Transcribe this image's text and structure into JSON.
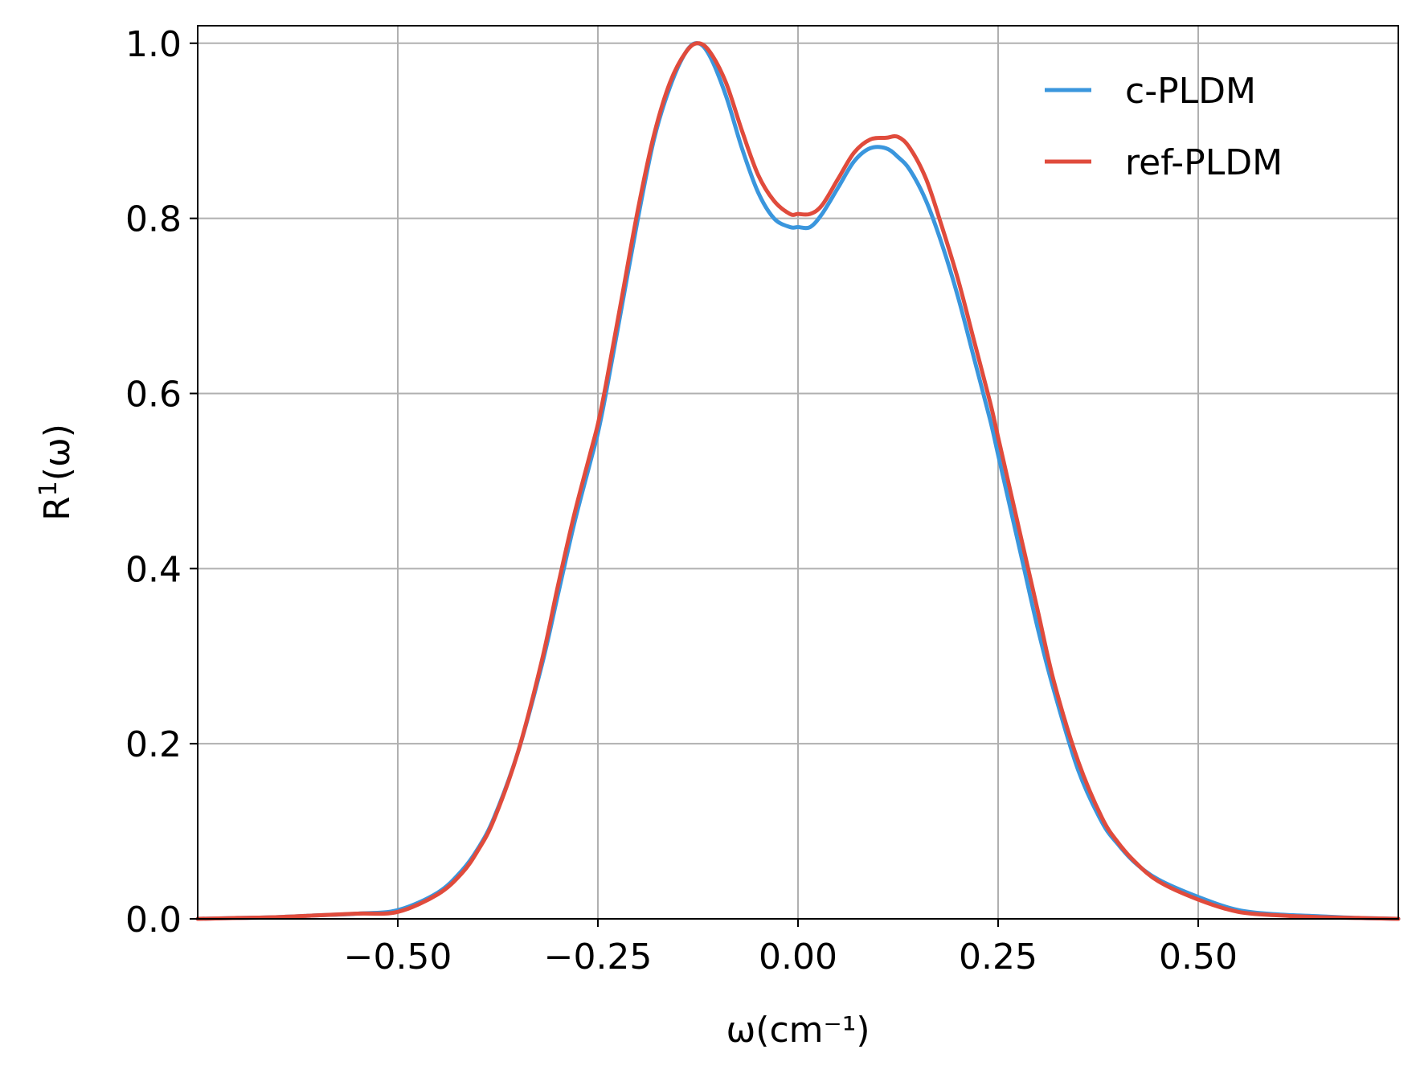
{
  "chart_data": {
    "type": "line",
    "title": "",
    "xlabel": "ω(cm⁻¹)",
    "ylabel": "R",
    "ylabel_superscript": "1",
    "ylabel_suffix": "(ω)",
    "xlim": [
      -0.75,
      0.75
    ],
    "ylim": [
      0.0,
      1.02
    ],
    "xticks": [
      -0.5,
      -0.25,
      0.0,
      0.25,
      0.5
    ],
    "xtick_labels": [
      "−0.50",
      "−0.25",
      "0.00",
      "0.25",
      "0.50"
    ],
    "yticks": [
      0.0,
      0.2,
      0.4,
      0.6,
      0.8,
      1.0
    ],
    "ytick_labels": [
      "0.0",
      "0.2",
      "0.4",
      "0.6",
      "0.8",
      "1.0"
    ],
    "grid": true,
    "legend_position": "upper right",
    "x": [
      -0.75,
      -0.7,
      -0.65,
      -0.6,
      -0.55,
      -0.5,
      -0.45,
      -0.42,
      -0.4,
      -0.38,
      -0.35,
      -0.32,
      -0.3,
      -0.28,
      -0.26,
      -0.25,
      -0.24,
      -0.22,
      -0.2,
      -0.18,
      -0.16,
      -0.14,
      -0.125,
      -0.11,
      -0.09,
      -0.07,
      -0.05,
      -0.03,
      -0.01,
      0.0,
      0.015,
      0.03,
      0.05,
      0.07,
      0.09,
      0.11,
      0.125,
      0.14,
      0.16,
      0.18,
      0.2,
      0.22,
      0.24,
      0.25,
      0.26,
      0.28,
      0.3,
      0.32,
      0.35,
      0.38,
      0.4,
      0.42,
      0.45,
      0.5,
      0.55,
      0.6,
      0.65,
      0.7,
      0.75
    ],
    "series": [
      {
        "name": "c-PLDM",
        "color": "#3a96dd",
        "values": [
          0.0,
          0.001,
          0.002,
          0.004,
          0.006,
          0.01,
          0.03,
          0.055,
          0.08,
          0.115,
          0.19,
          0.29,
          0.37,
          0.45,
          0.52,
          0.555,
          0.6,
          0.7,
          0.8,
          0.89,
          0.95,
          0.99,
          1.0,
          0.985,
          0.94,
          0.88,
          0.83,
          0.8,
          0.79,
          0.79,
          0.79,
          0.805,
          0.835,
          0.865,
          0.88,
          0.88,
          0.87,
          0.855,
          0.82,
          0.77,
          0.71,
          0.64,
          0.57,
          0.53,
          0.49,
          0.41,
          0.33,
          0.26,
          0.17,
          0.11,
          0.085,
          0.065,
          0.045,
          0.025,
          0.01,
          0.005,
          0.003,
          0.001,
          0.0
        ]
      },
      {
        "name": "ref-PLDM",
        "color": "#e04b3c",
        "values": [
          0.0,
          0.001,
          0.002,
          0.004,
          0.006,
          0.008,
          0.028,
          0.052,
          0.078,
          0.113,
          0.19,
          0.295,
          0.38,
          0.46,
          0.53,
          0.565,
          0.61,
          0.71,
          0.81,
          0.895,
          0.955,
          0.99,
          1.0,
          0.99,
          0.955,
          0.9,
          0.85,
          0.82,
          0.805,
          0.805,
          0.805,
          0.815,
          0.845,
          0.875,
          0.89,
          0.892,
          0.893,
          0.88,
          0.845,
          0.79,
          0.73,
          0.66,
          0.59,
          0.55,
          0.51,
          0.43,
          0.35,
          0.27,
          0.18,
          0.115,
          0.087,
          0.066,
          0.043,
          0.022,
          0.008,
          0.004,
          0.002,
          0.001,
          0.0
        ]
      }
    ]
  }
}
